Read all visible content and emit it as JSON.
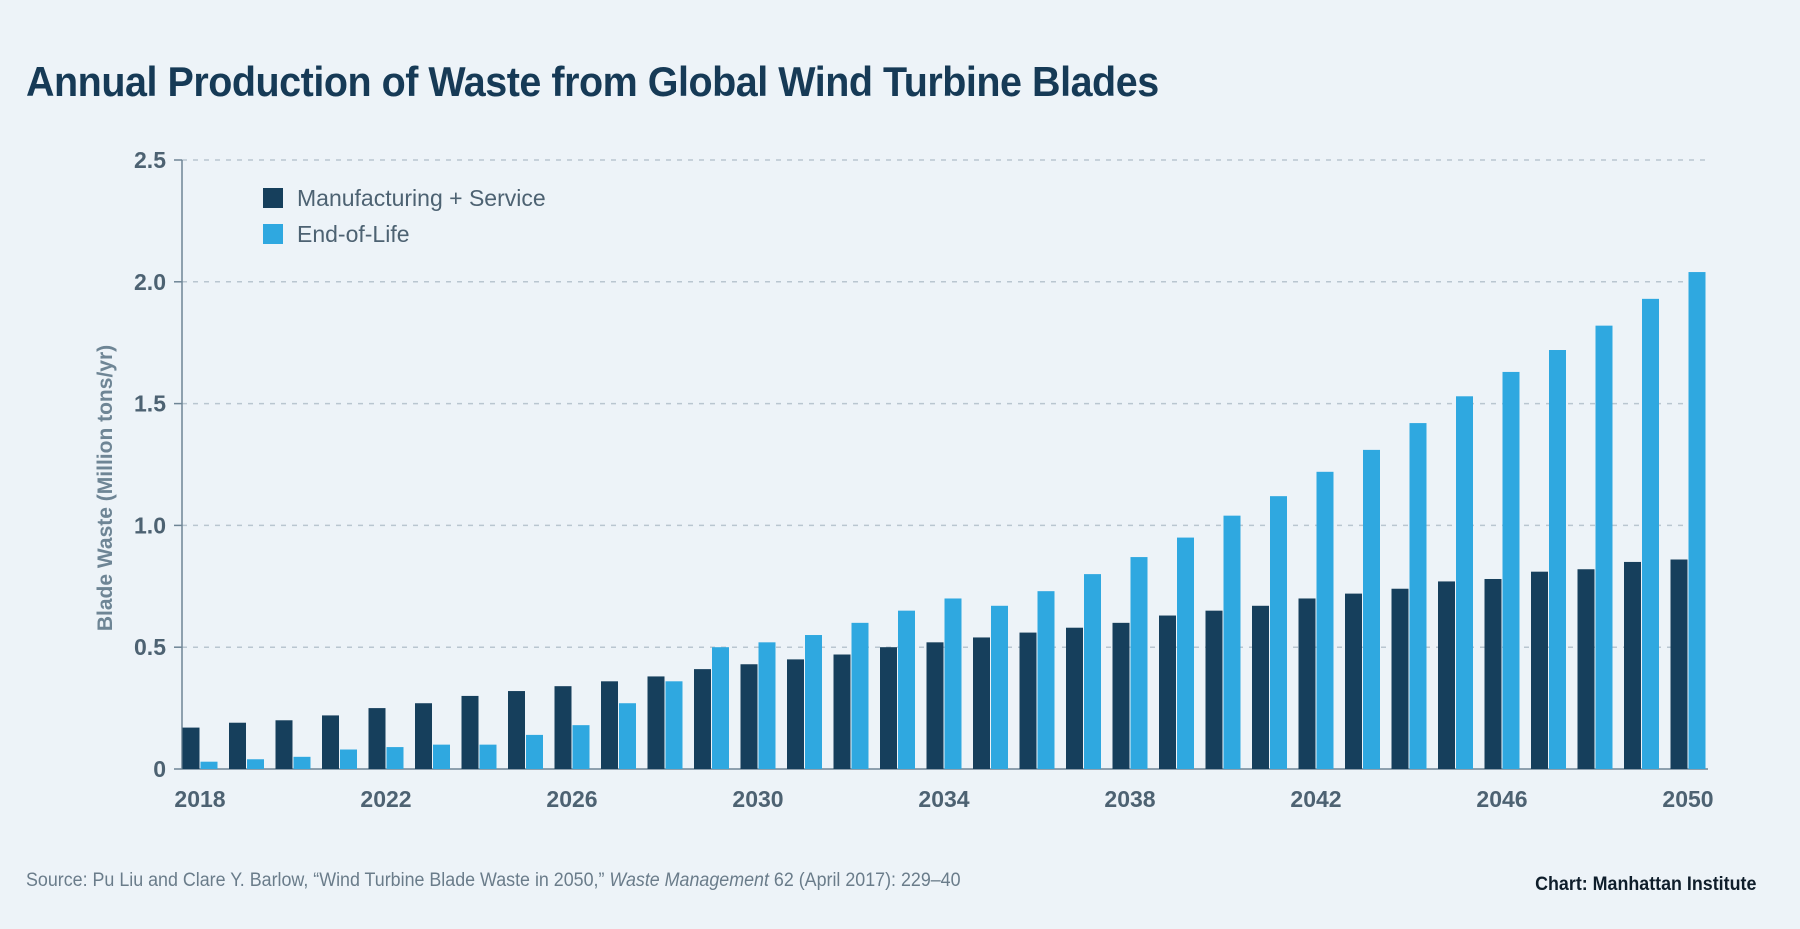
{
  "source": {
    "before": "Source: Pu Liu and Clare Y. Barlow, “Wind Turbine Blade Waste in 2050,” ",
    "journal": "Waste Management",
    "after": " 62 (April 2017): 229–40"
  },
  "credit": "Chart: Manhattan Institute",
  "chart_data": {
    "type": "bar",
    "title": "Annual Production of Waste from Global Wind Turbine Blades",
    "xlabel": "",
    "ylabel": "Blade Waste (Million tons/yr)",
    "ylim": [
      0,
      2.5
    ],
    "yticks": [
      {
        "value": 0,
        "label": "0"
      },
      {
        "value": 0.5,
        "label": "0.5"
      },
      {
        "value": 1.0,
        "label": "1.0"
      },
      {
        "value": 1.5,
        "label": "1.5"
      },
      {
        "value": 2.0,
        "label": "2.0"
      },
      {
        "value": 2.5,
        "label": "2.5"
      }
    ],
    "grid": "horizontal-dashed",
    "legend_position": "top-left",
    "categories": [
      2018,
      2019,
      2020,
      2021,
      2022,
      2023,
      2024,
      2025,
      2026,
      2027,
      2028,
      2029,
      2030,
      2031,
      2032,
      2033,
      2034,
      2035,
      2036,
      2037,
      2038,
      2039,
      2040,
      2041,
      2042,
      2043,
      2044,
      2045,
      2046,
      2047,
      2048,
      2049,
      2050
    ],
    "xtick_labels": [
      "2018",
      "2022",
      "2026",
      "2030",
      "2034",
      "2038",
      "2042",
      "2046",
      "2050"
    ],
    "series": [
      {
        "name": "Manufacturing + Service",
        "color": "#163f5c",
        "values": [
          0.17,
          0.19,
          0.2,
          0.22,
          0.25,
          0.27,
          0.3,
          0.32,
          0.34,
          0.36,
          0.38,
          0.41,
          0.43,
          0.45,
          0.47,
          0.5,
          0.52,
          0.54,
          0.56,
          0.58,
          0.6,
          0.63,
          0.65,
          0.67,
          0.7,
          0.72,
          0.74,
          0.77,
          0.78,
          0.81,
          0.82,
          0.85,
          0.86
        ]
      },
      {
        "name": "End-of-Life",
        "color": "#2fa8e0",
        "values": [
          0.03,
          0.04,
          0.05,
          0.08,
          0.09,
          0.1,
          0.1,
          0.14,
          0.18,
          0.27,
          0.36,
          0.5,
          0.52,
          0.55,
          0.6,
          0.65,
          0.7,
          0.67,
          0.73,
          0.8,
          0.87,
          0.95,
          1.04,
          1.12,
          1.22,
          1.31,
          1.42,
          1.53,
          1.63,
          1.72,
          1.82,
          1.93,
          2.04
        ]
      }
    ]
  }
}
